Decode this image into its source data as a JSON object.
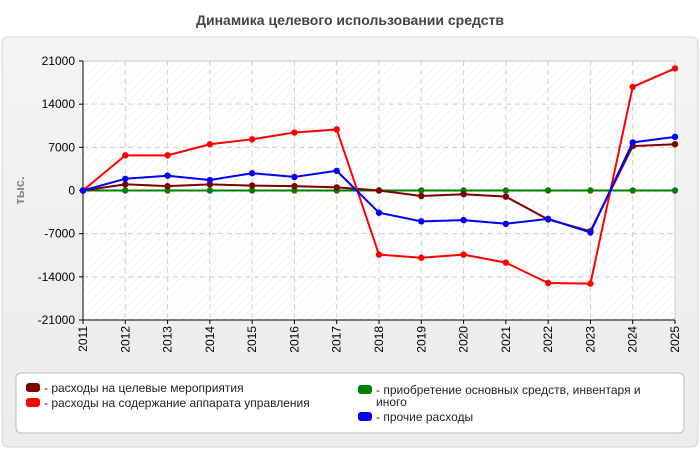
{
  "chart_data": {
    "type": "line",
    "title": "Динамика целевого использовании средств",
    "xlabel": "",
    "ylabel": "тыс.",
    "ylim": [
      -21000,
      21000
    ],
    "yticks": [
      "21000",
      "14000",
      "7000",
      "0",
      "-7000",
      "-14000",
      "-21000"
    ],
    "ytick_values": [
      21000,
      14000,
      7000,
      0,
      -7000,
      -14000,
      -21000
    ],
    "categories": [
      "2011",
      "2012",
      "2013",
      "2014",
      "2015",
      "2016",
      "2017",
      "2018",
      "2019",
      "2020",
      "2021",
      "2022",
      "2023",
      "2024",
      "2025"
    ],
    "grid": true,
    "legend_position": "bottom",
    "series": [
      {
        "name": "- расходы на целевые мероприятия",
        "color": "#800000",
        "values": [
          0,
          1000,
          700,
          1000,
          800,
          700,
          500,
          0,
          -900,
          -600,
          -1000,
          -4700,
          -6600,
          7200,
          7500
        ]
      },
      {
        "name": "- расходы на содержание аппарата управления",
        "color": "#ff0000",
        "values": [
          0,
          5700,
          5700,
          7500,
          8300,
          9400,
          9900,
          -10400,
          -10900,
          -10400,
          -11700,
          -15000,
          -15100,
          16800,
          19800
        ]
      },
      {
        "name": "- приобретение основных средств, инвентаря и иного",
        "color": "#008000",
        "values": [
          0,
          0,
          0,
          0,
          0,
          0,
          0,
          0,
          0,
          0,
          0,
          0,
          0,
          0,
          0
        ]
      },
      {
        "name": "- прочие расходы",
        "color": "#0000ff",
        "values": [
          0,
          1900,
          2400,
          1700,
          2800,
          2200,
          3200,
          -3600,
          -5000,
          -4800,
          -5400,
          -4600,
          -6800,
          7800,
          8700
        ]
      }
    ]
  }
}
